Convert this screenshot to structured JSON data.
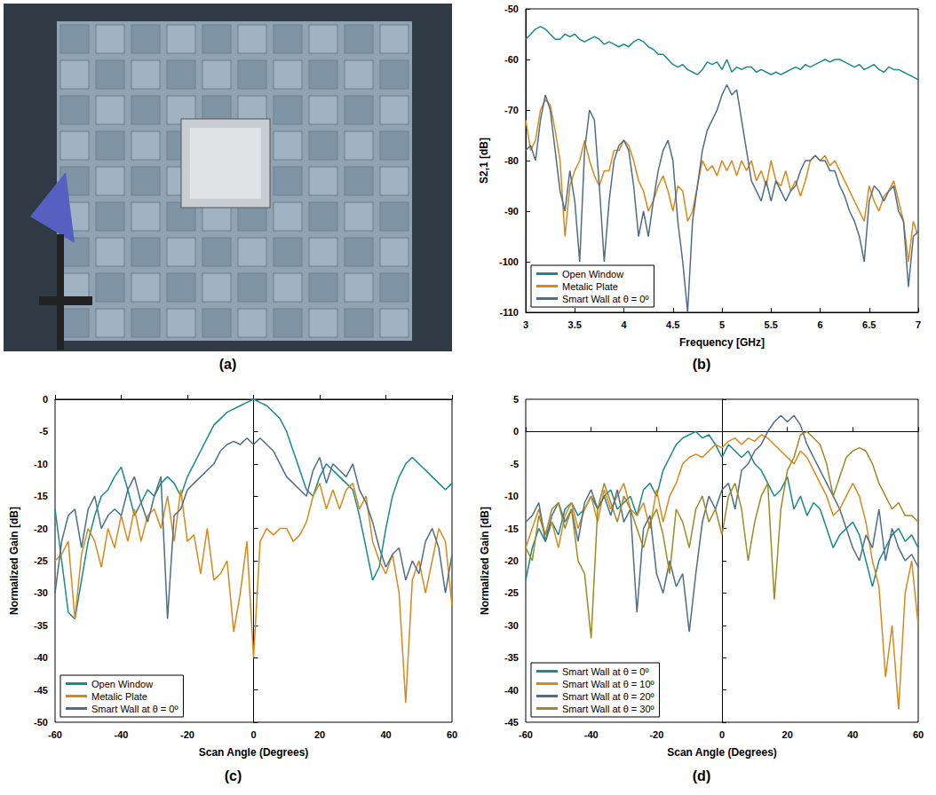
{
  "photo": {
    "label": "(a)"
  },
  "chart_data": [
    {
      "label": "(b)",
      "type": "line",
      "x_label": "Frequency [GHz]",
      "y_label": "S2,1 [dB]",
      "xlim": [
        3,
        7
      ],
      "xticks": [
        3,
        3.5,
        4,
        4.5,
        5,
        5.5,
        6,
        6.5,
        7
      ],
      "ylim": [
        -110,
        -50
      ],
      "yticks": [
        -110,
        -100,
        -90,
        -80,
        -70,
        -60,
        -50
      ],
      "legend": "lower left",
      "x": [
        3.0,
        3.05,
        3.1,
        3.15,
        3.2,
        3.25,
        3.3,
        3.35,
        3.4,
        3.45,
        3.5,
        3.55,
        3.6,
        3.65,
        3.7,
        3.75,
        3.8,
        3.85,
        3.9,
        3.95,
        4.0,
        4.05,
        4.1,
        4.15,
        4.2,
        4.25,
        4.3,
        4.35,
        4.4,
        4.45,
        4.5,
        4.55,
        4.6,
        4.65,
        4.7,
        4.75,
        4.8,
        4.85,
        4.9,
        4.95,
        5.0,
        5.05,
        5.1,
        5.15,
        5.2,
        5.25,
        5.3,
        5.35,
        5.4,
        5.45,
        5.5,
        5.55,
        5.6,
        5.65,
        5.7,
        5.75,
        5.8,
        5.85,
        5.9,
        5.95,
        6.0,
        6.05,
        6.1,
        6.15,
        6.2,
        6.25,
        6.3,
        6.35,
        6.4,
        6.45,
        6.5,
        6.55,
        6.6,
        6.65,
        6.7,
        6.75,
        6.8,
        6.85,
        6.9,
        6.95,
        7.0
      ],
      "series": [
        {
          "name": "Open Window",
          "color": "#188a8a",
          "values": [
            -56,
            -55,
            -54,
            -53.5,
            -54,
            -55,
            -56,
            -56,
            -55,
            -55.5,
            -55,
            -56,
            -56.5,
            -56,
            -55.5,
            -56,
            -57,
            -56.5,
            -57,
            -57.5,
            -57,
            -57.5,
            -56.5,
            -56,
            -56.5,
            -57.5,
            -58,
            -59,
            -59,
            -60,
            -61,
            -61.5,
            -61,
            -62,
            -62.5,
            -63,
            -62,
            -60.5,
            -61,
            -60.5,
            -62,
            -60,
            -62.5,
            -61.5,
            -62,
            -61.5,
            -61.5,
            -62.5,
            -62,
            -62.5,
            -63,
            -62.5,
            -63,
            -62.5,
            -62,
            -61.5,
            -62,
            -61,
            -61.5,
            -61,
            -60.5,
            -60,
            -60.5,
            -60,
            -60,
            -60.5,
            -61,
            -61.5,
            -61,
            -62,
            -61.5,
            -61,
            -62,
            -62.5,
            -61.5,
            -62,
            -62,
            -62.5,
            -63,
            -63.5,
            -64
          ]
        },
        {
          "name": "Metalic Plate",
          "color": "#d8891c",
          "values": [
            -72,
            -78,
            -76,
            -70,
            -68,
            -69,
            -74,
            -80,
            -95,
            -85,
            -82,
            -80,
            -76,
            -80,
            -83,
            -85,
            -82,
            -82,
            -78,
            -78,
            -76,
            -77,
            -80,
            -84,
            -86,
            -90,
            -88,
            -85,
            -83,
            -86,
            -90,
            -85,
            -86,
            -92,
            -90,
            -85,
            -80,
            -82,
            -81,
            -83,
            -80,
            -82,
            -80,
            -83,
            -80,
            -82,
            -80,
            -84,
            -82,
            -85,
            -80,
            -84,
            -85,
            -82,
            -86,
            -84,
            -87,
            -84,
            -80,
            -79,
            -80,
            -79,
            -81,
            -80,
            -82,
            -84,
            -86,
            -88,
            -90,
            -92,
            -85,
            -88,
            -90,
            -87,
            -86,
            -84,
            -88,
            -92,
            -100,
            -92,
            -95
          ]
        },
        {
          "name": "Smart Wall at θ = 0º",
          "color": "#4e6e86",
          "values": [
            -78,
            -77,
            -80,
            -72,
            -67,
            -70,
            -78,
            -86,
            -90,
            -82,
            -88,
            -100,
            -78,
            -70,
            -72,
            -85,
            -100,
            -88,
            -80,
            -77,
            -76,
            -78,
            -85,
            -95,
            -90,
            -95,
            -88,
            -82,
            -78,
            -76,
            -80,
            -92,
            -100,
            -110,
            -92,
            -85,
            -78,
            -74,
            -72,
            -70,
            -67,
            -65,
            -67,
            -66,
            -72,
            -78,
            -84,
            -86,
            -88,
            -84,
            -88,
            -84,
            -86,
            -88,
            -86,
            -85,
            -82,
            -80,
            -80,
            -79,
            -80,
            -80,
            -82,
            -82,
            -85,
            -87,
            -90,
            -92,
            -95,
            -100,
            -88,
            -85,
            -86,
            -88,
            -86,
            -85,
            -90,
            -92,
            -105,
            -95,
            -94
          ]
        }
      ]
    },
    {
      "label": "(c)",
      "type": "line",
      "x_label": "Scan Angle (Degrees)",
      "y_label": "Normalized Gain [dB]",
      "xlim": [
        -60,
        60
      ],
      "xticks": [
        -60,
        -40,
        -20,
        0,
        20,
        40,
        60
      ],
      "ylim": [
        -50,
        0
      ],
      "yticks": [
        -50,
        -45,
        -40,
        -35,
        -30,
        -25,
        -20,
        -15,
        -10,
        -5,
        0
      ],
      "legend": "lower left",
      "x": [
        -60,
        -58,
        -56,
        -54,
        -52,
        -50,
        -48,
        -46,
        -44,
        -42,
        -40,
        -38,
        -36,
        -34,
        -32,
        -30,
        -28,
        -26,
        -24,
        -22,
        -20,
        -18,
        -16,
        -14,
        -12,
        -10,
        -8,
        -6,
        -4,
        -2,
        0,
        2,
        4,
        6,
        8,
        10,
        12,
        14,
        16,
        18,
        20,
        22,
        24,
        26,
        28,
        30,
        32,
        34,
        36,
        38,
        40,
        42,
        44,
        46,
        48,
        50,
        52,
        54,
        56,
        58,
        60
      ],
      "series": [
        {
          "name": "Open Window",
          "color": "#188a8a",
          "values": [
            -17,
            -25,
            -33,
            -34,
            -28,
            -22,
            -18,
            -15,
            -14,
            -12,
            -10.5,
            -14,
            -18,
            -16,
            -14,
            -15,
            -13,
            -12,
            -13,
            -15,
            -12,
            -10,
            -8,
            -6,
            -4,
            -3,
            -2,
            -1.5,
            -1,
            -0.5,
            0,
            -0.5,
            -1,
            -2,
            -3,
            -5,
            -8,
            -11,
            -14,
            -15,
            -12,
            -10,
            -11,
            -12,
            -13,
            -14,
            -18,
            -23,
            -28,
            -26,
            -20,
            -15,
            -12,
            -10,
            -9,
            -10,
            -11,
            -12,
            -13,
            -14,
            -13
          ]
        },
        {
          "name": "Metalic Plate",
          "color": "#d8891c",
          "values": [
            -25,
            -24,
            -22,
            -34,
            -24,
            -20,
            -22,
            -26,
            -20,
            -23,
            -18,
            -22,
            -17,
            -22,
            -18,
            -17,
            -20,
            -15,
            -22,
            -14,
            -22,
            -21,
            -27,
            -20,
            -28,
            -27,
            -25,
            -36,
            -30,
            -22,
            -40,
            -22,
            -20,
            -21,
            -20,
            -20,
            -22,
            -21,
            -19,
            -15,
            -13,
            -17,
            -14,
            -17,
            -14,
            -13,
            -17,
            -15,
            -22,
            -25,
            -27,
            -24,
            -30,
            -47,
            -28,
            -25,
            -30,
            -25,
            -20,
            -22,
            -32
          ]
        },
        {
          "name": "Smart Wall at θ = 0º",
          "color": "#4e6e86",
          "values": [
            -30,
            -22,
            -18,
            -17,
            -23,
            -17,
            -15,
            -20,
            -18,
            -17,
            -18,
            -14,
            -12,
            -16,
            -19,
            -15,
            -12,
            -34,
            -18,
            -17,
            -14,
            -13,
            -12,
            -11,
            -10,
            -8,
            -7,
            -6.5,
            -7,
            -6,
            -7,
            -6,
            -7,
            -8,
            -10,
            -12,
            -13,
            -14,
            -15,
            -11,
            -9,
            -13,
            -10,
            -11,
            -12,
            -10,
            -14,
            -16,
            -19,
            -23,
            -26,
            -24,
            -23,
            -28,
            -25,
            -27,
            -22,
            -20,
            -23,
            -30,
            -24
          ]
        }
      ]
    },
    {
      "label": "(d)",
      "type": "line",
      "x_label": "Scan Angle (Degrees)",
      "y_label": "Normalized Gain [dB]",
      "xlim": [
        -60,
        60
      ],
      "xticks": [
        -60,
        -40,
        -20,
        0,
        20,
        40,
        60
      ],
      "ylim": [
        -45,
        5
      ],
      "yticks": [
        -45,
        -40,
        -35,
        -30,
        -25,
        -20,
        -15,
        -10,
        -5,
        0,
        5
      ],
      "legend": "lower left",
      "x": [
        -60,
        -58,
        -56,
        -54,
        -52,
        -50,
        -48,
        -46,
        -44,
        -42,
        -40,
        -38,
        -36,
        -34,
        -32,
        -30,
        -28,
        -26,
        -24,
        -22,
        -20,
        -18,
        -16,
        -14,
        -12,
        -10,
        -8,
        -6,
        -4,
        -2,
        0,
        2,
        4,
        6,
        8,
        10,
        12,
        14,
        16,
        18,
        20,
        22,
        24,
        26,
        28,
        30,
        32,
        34,
        36,
        38,
        40,
        42,
        44,
        46,
        48,
        50,
        52,
        54,
        56,
        58,
        60
      ],
      "series": [
        {
          "name": "Smart Wall at θ = 0º",
          "color": "#188a8a",
          "values": [
            -23,
            -18,
            -15,
            -17,
            -14,
            -16,
            -12,
            -11,
            -13,
            -12,
            -10,
            -12,
            -10,
            -9,
            -12,
            -11,
            -10,
            -13,
            -9,
            -8,
            -10,
            -6,
            -4,
            -2,
            -1,
            -0.5,
            0,
            -1,
            -0.5,
            -2,
            -4,
            -2,
            -3,
            -4,
            -3,
            -5,
            -6,
            -8,
            -10,
            -9,
            -7,
            -12,
            -10,
            -13,
            -11,
            -12,
            -15,
            -18,
            -16,
            -15,
            -14,
            -16,
            -20,
            -24,
            -20,
            -18,
            -16,
            -15,
            -17,
            -16,
            -18
          ]
        },
        {
          "name": "Smart Wall at θ = 10º",
          "color": "#d8891c",
          "values": [
            -18,
            -15,
            -12,
            -16,
            -14,
            -18,
            -13,
            -11,
            -15,
            -12,
            -10,
            -14,
            -9,
            -12,
            -10,
            -8,
            -12,
            -13,
            -11,
            -15,
            -9,
            -14,
            -10,
            -8,
            -5,
            -4,
            -3.5,
            -4,
            -3,
            -2,
            -2.5,
            -1.5,
            -1,
            -2,
            -1,
            -1.5,
            -0.5,
            -1,
            -2,
            -3,
            -4,
            -5,
            -3,
            -4,
            -6,
            -8,
            -10,
            -13,
            -12,
            -10,
            -8,
            -10,
            -14,
            -20,
            -24,
            -38,
            -30,
            -43,
            -25,
            -20,
            -30
          ]
        },
        {
          "name": "Smart Wall at θ = 20º",
          "color": "#4e6e86",
          "values": [
            -14,
            -13,
            -11,
            -17,
            -13,
            -11,
            -14,
            -12,
            -17,
            -11,
            -9,
            -12,
            -10,
            -13,
            -9,
            -14,
            -12,
            -28,
            -15,
            -13,
            -22,
            -25,
            -20,
            -24,
            -22,
            -31,
            -22,
            -14,
            -10,
            -12,
            -9,
            -8,
            -12,
            -6,
            -5,
            -3,
            -2,
            0,
            1.5,
            2.5,
            1.5,
            2.5,
            1,
            -2,
            -4,
            -6,
            -8,
            -10,
            -12,
            -15,
            -18,
            -20,
            -16,
            -18,
            -12,
            -20,
            -15,
            -18,
            -20,
            -19,
            -21
          ]
        },
        {
          "name": "Smart Wall at θ = 30º",
          "color": "#9b8b22",
          "values": [
            -18,
            -20,
            -13,
            -16,
            -12,
            -11,
            -15,
            -12,
            -20,
            -22,
            -32,
            -12,
            -8,
            -11,
            -14,
            -10,
            -12,
            -15,
            -18,
            -14,
            -12,
            -16,
            -22,
            -12,
            -14,
            -18,
            -12,
            -10,
            -14,
            -12,
            -16,
            -10,
            -8,
            -12,
            -20,
            -14,
            -10,
            -8,
            -26,
            -12,
            -6,
            -4,
            -0.5,
            0,
            -1,
            -2,
            -5,
            -10,
            -7,
            -4,
            -3,
            -2.5,
            -3,
            -5,
            -8,
            -10,
            -12,
            -11,
            -13,
            -13,
            -14
          ]
        }
      ]
    }
  ]
}
